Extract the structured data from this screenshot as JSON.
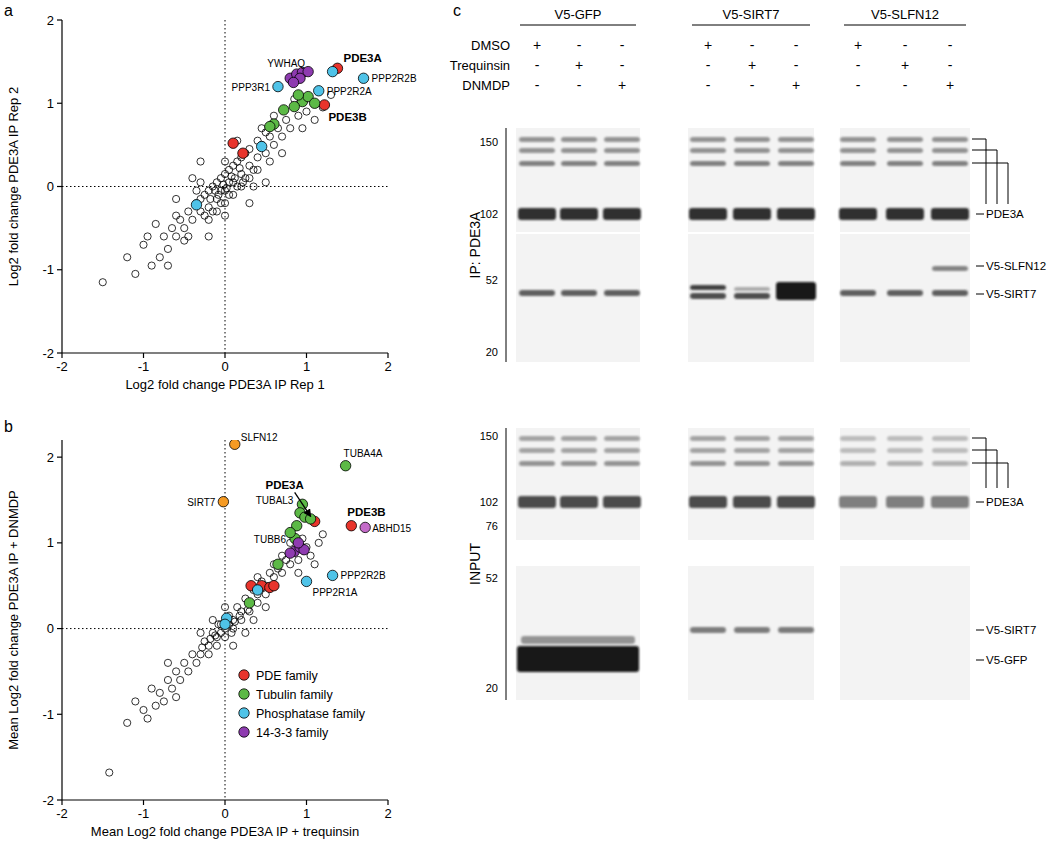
{
  "chart_data": [
    {
      "type": "scatter",
      "title": "a",
      "x_label": "Log2 fold change PDE3A IP Rep 1",
      "y_label": "Log2 fold change PDE3A IP Rep 2",
      "xlim": [
        -2,
        2
      ],
      "ylim": [
        -2,
        2
      ],
      "xticks": [
        -2,
        -1,
        0,
        1,
        2
      ],
      "yticks": [
        -2,
        -1,
        0,
        1,
        2
      ],
      "reference_lines": [
        {
          "axis": "x",
          "value": 0
        },
        {
          "axis": "y",
          "value": 0
        }
      ],
      "series": [
        {
          "color": "#000000",
          "marker": "open-circle",
          "x": [
            -0.3,
            -0.2,
            -0.1,
            0,
            0.1,
            0.2,
            0.3,
            0.4,
            -0.35,
            -0.25,
            -0.15,
            -0.05,
            0.05,
            0.15,
            0.25,
            -0.25,
            -0.15,
            -0.05,
            0.05,
            0.15,
            0.25,
            0.35,
            -0.4,
            -0.3,
            -0.2,
            -0.1,
            0,
            0.1,
            0.2,
            0.3,
            -0.1,
            0,
            0.1,
            0.2,
            0.3,
            0.4,
            -0.2,
            -0.45,
            -0.35,
            -0.05,
            0.05,
            -0.02,
            0.02,
            0.08,
            -0.08,
            0.12,
            -0.12,
            0.18,
            -0.18,
            0.22,
            0,
            0,
            0.35,
            -0.3,
            0.45,
            0.5,
            0.55,
            0.6,
            0.5,
            0.65,
            0.7,
            0.45,
            0.75,
            0.6,
            0.8,
            0.4,
            0.55,
            -0.5,
            -0.55,
            -0.6,
            -0.5,
            -0.65,
            -0.7,
            -0.6,
            -0.45,
            -0.75,
            -0.8,
            -1.0,
            -0.9,
            -1.1,
            -0.95,
            -0.85,
            -1.2,
            -0.7,
            0.9,
            1.0,
            0.85,
            1.2,
            1.1,
            0.95,
            1.3,
            -0.4,
            0.5,
            -0.3,
            0.3,
            -0.6,
            0.7,
            0.15,
            -0.2,
            -1.5
          ],
          "values": [
            -0.3,
            -0.25,
            -0.15,
            -0.05,
            0.05,
            0.15,
            0.25,
            0.35,
            -0.2,
            -0.1,
            0,
            0.1,
            0.2,
            0.3,
            0.4,
            -0.35,
            -0.3,
            -0.2,
            -0.1,
            0,
            0.1,
            0.2,
            -0.4,
            -0.15,
            -0.05,
            0.05,
            0.15,
            0.25,
            0.35,
            0.45,
            -0.3,
            -0.2,
            -0.1,
            0,
            0.1,
            0.2,
            -0.4,
            -0.3,
            -0.05,
            -0.05,
            0.05,
            0.02,
            -0.02,
            0.12,
            -0.1,
            0.1,
            -0.05,
            0.22,
            -0.15,
            0.05,
            0.3,
            -0.35,
            0,
            0.05,
            0.5,
            0.4,
            0.6,
            0.5,
            0.65,
            0.7,
            0.6,
            0.7,
            0.8,
            0.85,
            0.7,
            0.55,
            0.3,
            -0.5,
            -0.4,
            -0.6,
            -0.65,
            -0.5,
            -0.75,
            -0.35,
            -0.6,
            -0.6,
            -0.85,
            -0.7,
            -0.95,
            -1.05,
            -0.6,
            -0.45,
            -0.85,
            -0.95,
            0.85,
            0.9,
            1.05,
            0.95,
            0.8,
            0.7,
            1.1,
            0.1,
            0.05,
            0.3,
            -0.2,
            -0.15,
            0.4,
            0.55,
            -0.6,
            -1.15
          ]
        },
        {
          "color": "#e8342c",
          "marker": "circle",
          "x": [
            1.38,
            1.22,
            0.1,
            0.22
          ],
          "values": [
            1.42,
            0.98,
            0.52,
            0.4
          ],
          "labels": [
            "PDE3A",
            "PDE3B",
            null,
            null
          ]
        },
        {
          "color": "#5cb946",
          "marker": "circle",
          "x": [
            0.95,
            1.02,
            0.72,
            0.6,
            0.85,
            1.1,
            0.55,
            0.9
          ],
          "values": [
            1.02,
            1.08,
            0.92,
            0.75,
            0.96,
            1.0,
            0.72,
            1.1
          ],
          "labels": [
            null,
            null,
            null,
            null,
            null,
            null,
            null,
            null
          ]
        },
        {
          "color": "#4fc3e8",
          "marker": "circle",
          "x": [
            1.7,
            1.15,
            0.65,
            0.45,
            -0.35,
            1.32
          ],
          "values": [
            1.3,
            1.15,
            1.2,
            0.48,
            -0.22,
            1.38
          ],
          "labels": [
            "PPP2R2B",
            "PPP2R2A",
            "PPP3R1",
            null,
            null,
            null
          ]
        },
        {
          "color": "#8e3bb0",
          "marker": "circle",
          "x": [
            0.8,
            0.88,
            0.95,
            1.02,
            0.92,
            0.84
          ],
          "values": [
            1.3,
            1.35,
            1.37,
            1.38,
            1.3,
            1.25
          ],
          "labels": [
            "YWHAQ",
            null,
            null,
            null,
            null,
            null
          ]
        }
      ]
    },
    {
      "type": "scatter",
      "title": "b",
      "x_label": "Mean Log2 fold change PDE3A IP + trequinsin",
      "y_label": "Mean Log2 fold change PDE3A IP + DNMDP",
      "xlim": [
        -2,
        2
      ],
      "ylim": [
        -2,
        2.2
      ],
      "xticks": [
        -2,
        -1,
        0,
        1,
        2
      ],
      "yticks": [
        -2,
        -1,
        0,
        1,
        2
      ],
      "reference_lines": [
        {
          "axis": "x",
          "value": 0
        },
        {
          "axis": "y",
          "value": 0
        }
      ],
      "legend": "lower right",
      "series": [
        {
          "color": "#000000",
          "marker": "open-circle",
          "x": [
            -0.3,
            -0.2,
            -0.1,
            0,
            0.1,
            0.2,
            0.3,
            0.4,
            0.5,
            -0.25,
            -0.15,
            -0.05,
            0.05,
            0.15,
            0.25,
            0.35,
            0.45,
            -0.2,
            -0.1,
            0,
            0.1,
            0.2,
            0.3,
            0.4,
            0.5,
            -0.35,
            -0.4,
            -0.45,
            -0.5,
            -0.55,
            -0.6,
            -0.65,
            -0.7,
            0.6,
            0.65,
            0.7,
            0.75,
            0.8,
            0.6,
            0.55,
            0.7,
            0.85,
            0.9,
            -0.05,
            0.05,
            0.12,
            -0.12,
            0.08,
            -0.08,
            0.18,
            -0.18,
            0.28,
            -0.28,
            0,
            0.1,
            -0.15,
            0.25,
            0.35,
            -0.3,
            0.4,
            0.5,
            -0.8,
            -0.85,
            -0.9,
            -0.75,
            -1.0,
            -0.95,
            -1.1,
            -1.2,
            -0.7,
            -0.6,
            1.0,
            0.95,
            1.05,
            1.15,
            1.2,
            0.8,
            0.9,
            1.1,
            -1.42
          ],
          "values": [
            -0.3,
            -0.2,
            -0.1,
            0,
            0.1,
            0.2,
            0.3,
            0.4,
            0.5,
            -0.15,
            -0.05,
            0.05,
            0.15,
            0.25,
            0.35,
            0.45,
            0.55,
            -0.3,
            -0.2,
            -0.1,
            0,
            0.1,
            0.2,
            0.3,
            0.4,
            -0.4,
            -0.3,
            -0.5,
            -0.4,
            -0.6,
            -0.5,
            -0.7,
            -0.6,
            0.6,
            0.7,
            0.65,
            0.8,
            0.75,
            0.75,
            0.65,
            0.85,
            0.9,
            0.8,
            -0.05,
            0.05,
            0.08,
            -0.08,
            -0.05,
            0.05,
            0.15,
            -0.12,
            0.22,
            -0.22,
            0.25,
            -0.2,
            0.1,
            -0.05,
            0.1,
            -0.05,
            0.6,
            0.25,
            -0.75,
            -0.9,
            -0.7,
            -0.85,
            -0.95,
            -1.05,
            -0.85,
            -1.1,
            -0.4,
            -0.8,
            0.95,
            1.05,
            0.85,
            1.0,
            1.1,
            1.0,
            0.65,
            0.75,
            -1.68
          ]
        },
        {
          "color": "#f59a23",
          "marker": "circle",
          "x": [
            0.12,
            -0.02
          ],
          "values": [
            2.15,
            1.48
          ],
          "labels": [
            "SLFN12",
            "SIRT7"
          ]
        },
        {
          "name": "PDE family",
          "color": "#e8342c",
          "marker": "circle",
          "x": [
            1.1,
            1.55,
            0.45,
            0.55,
            0.6,
            0.32
          ],
          "values": [
            1.25,
            1.2,
            0.5,
            0.48,
            0.5,
            0.5
          ],
          "labels": [
            "PDE3A",
            "PDE3B",
            null,
            null,
            null,
            null
          ]
        },
        {
          "name": "Tubulin family",
          "color": "#5cb946",
          "marker": "circle",
          "x": [
            1.48,
            0.95,
            0.92,
            0.98,
            1.05,
            0.88,
            0.86,
            0.8,
            0.65,
            0.3
          ],
          "values": [
            1.9,
            1.45,
            1.35,
            1.3,
            1.28,
            1.2,
            1.05,
            1.12,
            0.75,
            0.3
          ],
          "labels": [
            "TUBA4A",
            "TUBAL3",
            null,
            null,
            null,
            null,
            "TUBB6",
            null,
            null,
            null
          ]
        },
        {
          "name": "Phosphatase family",
          "color": "#4fc3e8",
          "marker": "circle",
          "x": [
            1.32,
            1.0,
            0.02,
            0.0,
            0.4
          ],
          "values": [
            0.62,
            0.55,
            0.12,
            0.05,
            0.45
          ],
          "labels": [
            "PPP2R2B",
            "PPP2R1A",
            null,
            null,
            null
          ]
        },
        {
          "name": "14-3-3 family",
          "color": "#8e3bb0",
          "marker": "circle",
          "x": [
            0.85,
            0.92,
            0.8,
            0.97,
            0.9
          ],
          "values": [
            0.9,
            0.95,
            0.88,
            0.92,
            1.0
          ],
          "labels": [
            null,
            null,
            null,
            null,
            null
          ]
        },
        {
          "color": "#c46bc9",
          "marker": "circle",
          "x": [
            1.72
          ],
          "values": [
            1.18
          ],
          "labels": [
            "ABHD15"
          ]
        }
      ]
    }
  ],
  "blot": {
    "title": "c",
    "groups": [
      "V5-GFP",
      "V5-SIRT7",
      "V5-SLFN12"
    ],
    "treatments": [
      "DMSO",
      "Trequinsin",
      "DNMDP"
    ],
    "treatment_signs": [
      [
        [
          "+",
          "-",
          "-"
        ],
        [
          "-",
          "+",
          "-"
        ],
        [
          "-",
          "-",
          "+"
        ]
      ],
      [
        [
          "+",
          "-",
          "-"
        ],
        [
          "-",
          "+",
          "-"
        ],
        [
          "-",
          "-",
          "+"
        ]
      ],
      [
        [
          "+",
          "-",
          "-"
        ],
        [
          "-",
          "+",
          "-"
        ],
        [
          "-",
          "-",
          "+"
        ]
      ]
    ],
    "ip_label": "IP: PDE3A",
    "input_label": "INPUT",
    "ip_markers": [
      150,
      102,
      52,
      20
    ],
    "input_markers": [
      150,
      102,
      76,
      52,
      20
    ],
    "ip_bands": [
      "PDE3A",
      "V5-SLFN12",
      "V5-SIRT7"
    ],
    "input_bands": [
      "PDE3A",
      "V5-SIRT7",
      "V5-GFP"
    ]
  }
}
